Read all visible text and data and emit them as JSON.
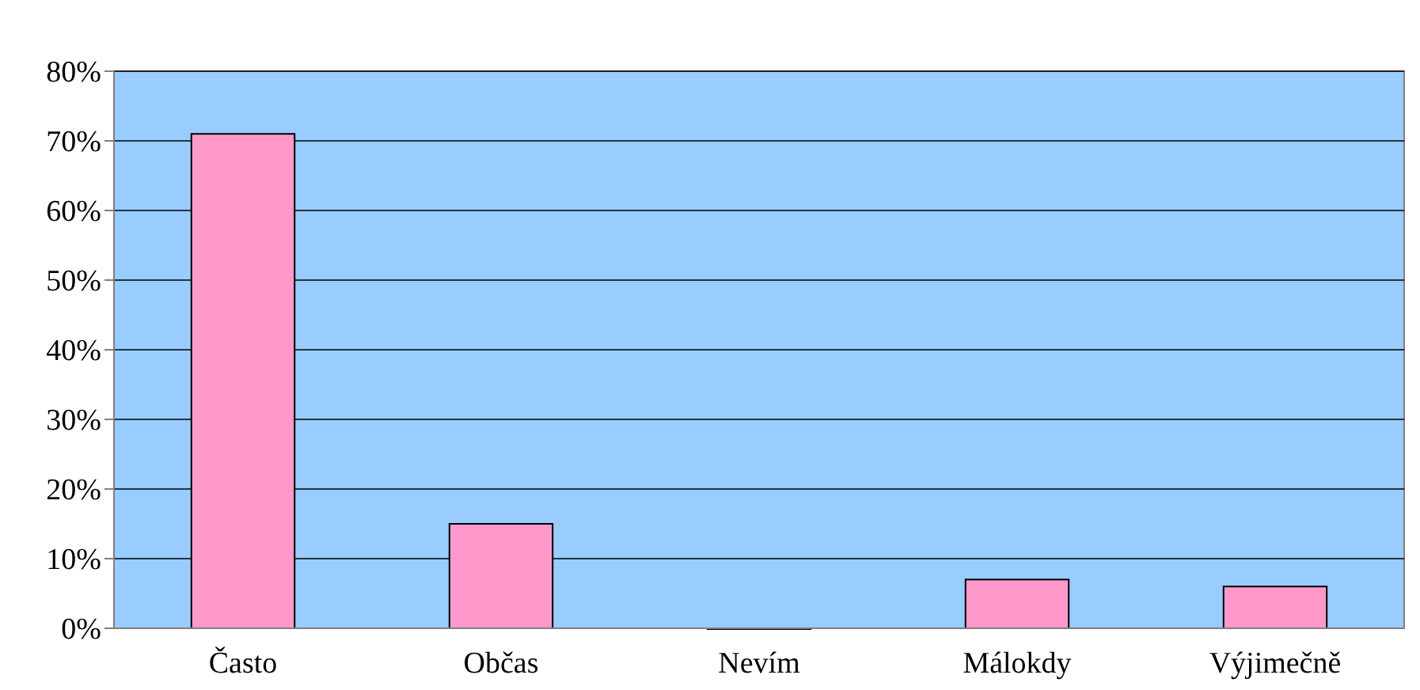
{
  "chart_data": {
    "type": "bar",
    "categories": [
      "Často",
      "Občas",
      "Nevím",
      "Málokdy",
      "Výjimečně"
    ],
    "values": [
      71,
      15,
      0,
      7,
      6
    ],
    "color": "#ff99cc",
    "ylim": [
      0,
      80
    ],
    "yticks": [
      {
        "value": 0,
        "label": "0%"
      },
      {
        "value": 10,
        "label": "10%"
      },
      {
        "value": 20,
        "label": "20%"
      },
      {
        "value": 30,
        "label": "30%"
      },
      {
        "value": 40,
        "label": "40%"
      },
      {
        "value": 50,
        "label": "50%"
      },
      {
        "value": 60,
        "label": "60%"
      },
      {
        "value": 70,
        "label": "70%"
      },
      {
        "value": 80,
        "label": "80%"
      }
    ],
    "grid": "y"
  }
}
